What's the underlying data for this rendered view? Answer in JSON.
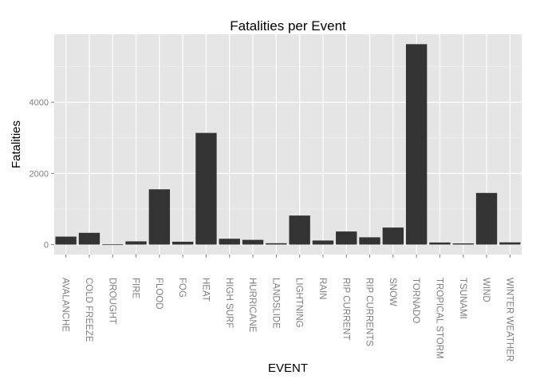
{
  "chart_data": {
    "type": "bar",
    "title": "Fatalities per Event",
    "xlabel": "EVENT",
    "ylabel": "Fatalities",
    "categories": [
      "AVALANCHE",
      "COLD FREEZE",
      "DROUGHT",
      "FIRE",
      "FLOOD",
      "FOG",
      "HEAT",
      "HIGH SURF",
      "HURRICANE",
      "LANDSLIDE",
      "LIGHTNING",
      "RAIN",
      "RIP CURRENT",
      "RIP CURRENTS",
      "SNOW",
      "TORNADO",
      "TROPICAL STORM",
      "TSUNAMI",
      "WIND",
      "WINTER WEATHER"
    ],
    "values": [
      224,
      330,
      6,
      90,
      1553,
      80,
      3138,
      164,
      133,
      38,
      816,
      114,
      368,
      204,
      478,
      5633,
      58,
      33,
      1451,
      62
    ],
    "y_ticks": [
      0,
      2000,
      4000
    ],
    "ylim": [
      -280,
      5910
    ],
    "grid": true,
    "bar_color": "#333333",
    "panel_color": "#e5e5e5",
    "legend": "none"
  }
}
